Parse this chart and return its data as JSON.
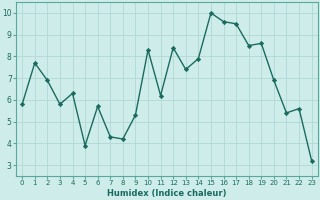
{
  "x": [
    0,
    1,
    2,
    3,
    4,
    5,
    6,
    7,
    8,
    9,
    10,
    11,
    12,
    13,
    14,
    15,
    16,
    17,
    18,
    19,
    20,
    21,
    22,
    23
  ],
  "y": [
    5.8,
    7.7,
    6.9,
    5.8,
    6.3,
    3.9,
    5.7,
    4.3,
    4.2,
    5.3,
    8.3,
    6.2,
    8.4,
    7.4,
    7.9,
    10.0,
    9.6,
    9.5,
    8.5,
    8.6,
    6.9,
    5.4,
    5.6,
    3.2
  ],
  "line_color": "#1a6b5e",
  "marker": "D",
  "markersize": 2.2,
  "linewidth": 1.0,
  "xlabel": "Humidex (Indice chaleur)",
  "bg_color": "#ceecea",
  "grid_color": "#b0d8d4",
  "xlim": [
    -0.5,
    23.5
  ],
  "ylim": [
    2.5,
    10.5
  ],
  "yticks": [
    3,
    4,
    5,
    6,
    7,
    8,
    9,
    10
  ],
  "xticks": [
    0,
    1,
    2,
    3,
    4,
    5,
    6,
    7,
    8,
    9,
    10,
    11,
    12,
    13,
    14,
    15,
    16,
    17,
    18,
    19,
    20,
    21,
    22,
    23
  ],
  "tick_fontsize": 5.0,
  "xlabel_fontsize": 6.0
}
